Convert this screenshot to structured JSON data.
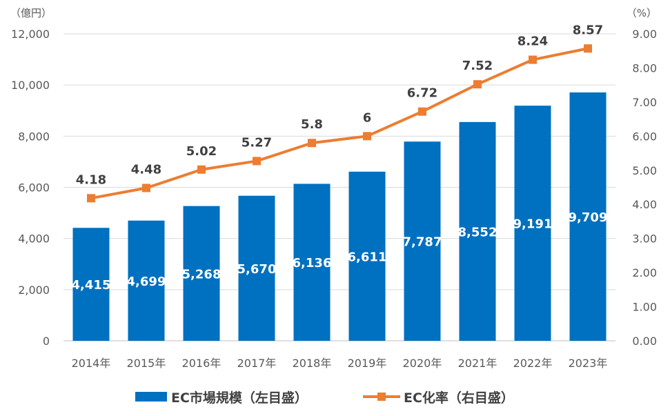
{
  "chart_data": {
    "type": "bar+line",
    "categories": [
      "2014年",
      "2015年",
      "2016年",
      "2017年",
      "2018年",
      "2019年",
      "2020年",
      "2021年",
      "2022年",
      "2023年"
    ],
    "series": [
      {
        "name": "EC市場規模（左目盛）",
        "type": "bar",
        "axis": "left",
        "color": "#0070C0",
        "values": [
          4415,
          4699,
          5268,
          5670,
          6136,
          6611,
          7787,
          8552,
          9191,
          9709
        ],
        "labels": [
          "4,415",
          "4,699",
          "5,268",
          "5,670",
          "6,136",
          "6,611",
          "7,787",
          "8,552",
          "9,191",
          "9,709"
        ]
      },
      {
        "name": "EC化率（右目盛）",
        "type": "line",
        "axis": "right",
        "color": "#ED7D31",
        "values": [
          4.18,
          4.48,
          5.02,
          5.27,
          5.8,
          6,
          6.72,
          7.52,
          8.24,
          8.57
        ],
        "labels": [
          "4.18",
          "4.48",
          "5.02",
          "5.27",
          "5.8",
          "6",
          "6.72",
          "7.52",
          "8.24",
          "8.57"
        ]
      }
    ],
    "y_left": {
      "unit": "（億円）",
      "range": [
        0,
        12000
      ],
      "ticks": [
        "0",
        "2,000",
        "4,000",
        "6,000",
        "8,000",
        "10,000",
        "12,000"
      ],
      "tick_values": [
        0,
        2000,
        4000,
        6000,
        8000,
        10000,
        12000
      ]
    },
    "y_right": {
      "unit": "（%）",
      "range": [
        0,
        9
      ],
      "ticks": [
        "0.00",
        "1.00",
        "2.00",
        "3.00",
        "4.00",
        "5.00",
        "6.00",
        "7.00",
        "8.00",
        "9.00"
      ],
      "tick_values": [
        0,
        1,
        2,
        3,
        4,
        5,
        6,
        7,
        8,
        9
      ]
    },
    "grid": true,
    "legend_position": "bottom"
  }
}
